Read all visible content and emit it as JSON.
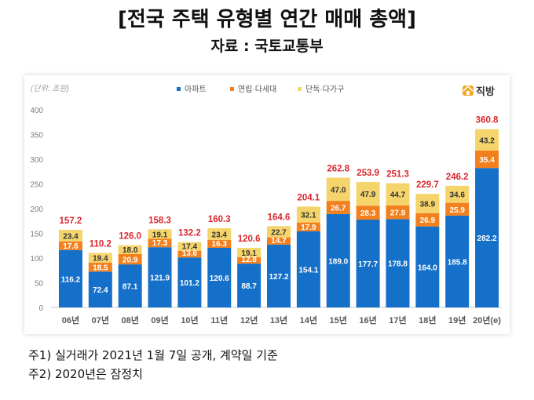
{
  "header": {
    "title": "[전국 주택 유형별 연간 매매 총액]",
    "source": "자료 : 국토교통부"
  },
  "brand": {
    "logo_text": "직방",
    "icon": "house-logo-icon"
  },
  "notes": {
    "note1": "주1) 실거래가 2021년 1월 7일 공개, 계약일 기준",
    "note2": "주2) 2020년은 잠정치"
  },
  "colors": {
    "apartment": "#1570c9",
    "rowhouse": "#f2801e",
    "detached": "#f5d56b",
    "total_label": "#d9262e",
    "axis_text": "#7f7f7f"
  },
  "chart_data": {
    "type": "bar",
    "stacked": true,
    "unit_label": "(단위: 조원)",
    "categories": [
      "06년",
      "07년",
      "08년",
      "09년",
      "10년",
      "11년",
      "12년",
      "13년",
      "14년",
      "15년",
      "16년",
      "17년",
      "18년",
      "19년",
      "20년(e)"
    ],
    "series": [
      {
        "name": "아파트",
        "values": [
          116.2,
          72.4,
          87.1,
          121.9,
          101.2,
          120.6,
          88.7,
          127.2,
          154.1,
          189.0,
          177.7,
          178.8,
          164.0,
          185.8,
          282.2
        ]
      },
      {
        "name": "연립·다세대",
        "values": [
          17.6,
          18.5,
          20.9,
          17.3,
          13.6,
          16.3,
          12.8,
          14.7,
          17.9,
          26.7,
          28.3,
          27.9,
          26.9,
          25.9,
          35.4
        ]
      },
      {
        "name": "단독·다가구",
        "values": [
          23.4,
          19.4,
          18.0,
          19.1,
          17.4,
          23.4,
          19.1,
          22.7,
          32.1,
          47.0,
          47.9,
          44.7,
          38.9,
          34.6,
          43.2
        ]
      }
    ],
    "totals": [
      157.2,
      110.2,
      126.0,
      158.3,
      132.2,
      160.3,
      120.6,
      164.6,
      204.1,
      262.8,
      253.9,
      251.3,
      229.7,
      246.2,
      360.8
    ],
    "y_ticks": [
      0,
      50,
      100,
      150,
      200,
      250,
      300,
      350,
      400
    ],
    "ylim": [
      0,
      400
    ],
    "legend_position": "top-center",
    "grid": false
  }
}
